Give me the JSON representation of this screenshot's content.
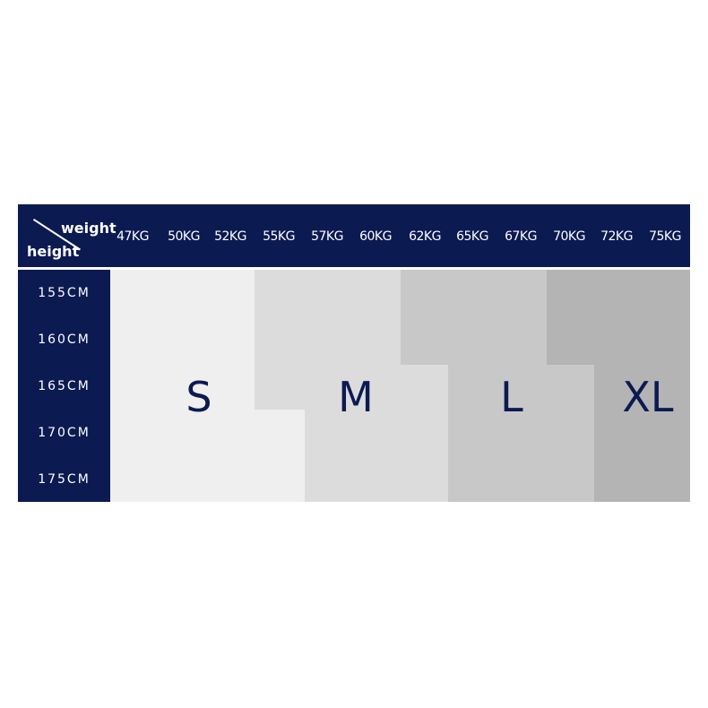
{
  "header": {
    "corner_weight": "weight",
    "corner_height": "height",
    "weights": [
      "47KG",
      "50KG",
      "52KG",
      "55KG",
      "57KG",
      "60KG",
      "62KG",
      "65KG",
      "67KG",
      "70KG",
      "72KG",
      "75KG"
    ]
  },
  "heights": [
    "155CM",
    "160CM",
    "165CM",
    "170CM",
    "175CM"
  ],
  "sizes": {
    "s": "S",
    "m": "M",
    "l": "L",
    "xl": "XL"
  },
  "colors": {
    "navy": "#0c1a52",
    "s": "#efefef",
    "m": "#dcdcdc",
    "l": "#c8c8c8",
    "xl": "#b4b4b4"
  }
}
